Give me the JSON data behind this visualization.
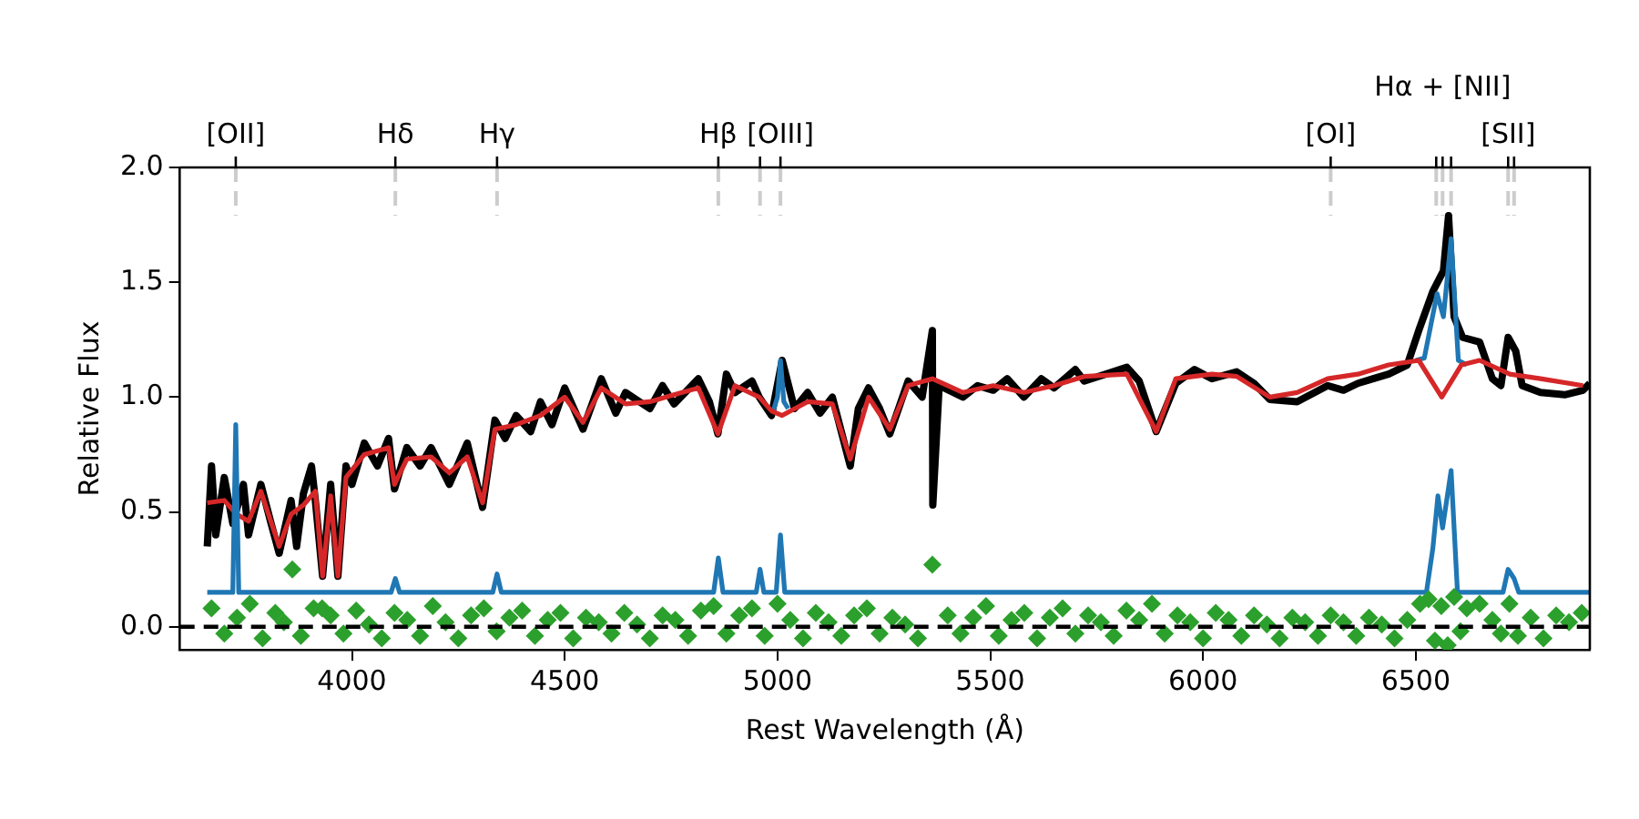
{
  "chart_data": {
    "type": "line",
    "xlabel": "Rest Wavelength (Å)",
    "ylabel": "Relative Flux",
    "xlim": [
      3596,
      6909
    ],
    "xticks": [
      4000,
      4500,
      5000,
      5500,
      6000,
      6500
    ],
    "ylim": [
      -0.1,
      2.0
    ],
    "yticks": [
      {
        "value": 0,
        "label": "0.0"
      },
      {
        "value": 0.5,
        "label": "0.5"
      },
      {
        "value": 1,
        "label": "1.0"
      },
      {
        "value": 1.5,
        "label": "1.5"
      },
      {
        "value": 2,
        "label": "2.0"
      }
    ],
    "grid": false,
    "legend": false,
    "ref_lines": [
      {
        "axis": "x",
        "value": 3727,
        "label": "[OII]",
        "color": "#cccccc",
        "line_style": "dashed"
      },
      {
        "axis": "x",
        "value": 4102,
        "label": "Hδ",
        "color": "#cccccc",
        "line_style": "dashed"
      },
      {
        "axis": "x",
        "value": 4341,
        "label": "Hγ",
        "color": "#cccccc",
        "line_style": "dashed"
      },
      {
        "axis": "x",
        "value": 4861,
        "label": "Hβ",
        "color": "#cccccc",
        "line_style": "dashed"
      },
      {
        "axis": "x",
        "value": 4959,
        "color": "#cccccc",
        "line_style": "dashed"
      },
      {
        "axis": "x",
        "value": 5007,
        "label": "[OIII]",
        "color": "#cccccc",
        "line_style": "dashed"
      },
      {
        "axis": "x",
        "value": 6300,
        "label": "[OI]",
        "color": "#cccccc",
        "line_style": "dashed"
      },
      {
        "axis": "x",
        "value": 6548,
        "color": "#cccccc",
        "line_style": "dashed"
      },
      {
        "axis": "x",
        "value": 6563,
        "label": "Hα + [NII]",
        "color": "#cccccc",
        "line_style": "dashed"
      },
      {
        "axis": "x",
        "value": 6583,
        "color": "#cccccc",
        "line_style": "dashed"
      },
      {
        "axis": "x",
        "value": 6717,
        "label": "[SII]",
        "color": "#cccccc",
        "line_style": "dashed"
      },
      {
        "axis": "x",
        "value": 6731,
        "color": "#cccccc",
        "line_style": "dashed"
      },
      {
        "axis": "y",
        "value": 0,
        "color": "#000000",
        "line_style": "dashed"
      }
    ],
    "series": [
      {
        "color": "#000000",
        "x": [
          3660,
          3670,
          3680,
          3700,
          3720,
          3745,
          3757,
          3786,
          3810,
          3829,
          3857,
          3870,
          3886,
          3905,
          3914,
          3931,
          3950,
          3967,
          3986,
          4000,
          4029,
          4060,
          4086,
          4100,
          4129,
          4160,
          4186,
          4229,
          4271,
          4307,
          4336,
          4360,
          4386,
          4420,
          4443,
          4470,
          4500,
          4543,
          4586,
          4620,
          4643,
          4700,
          4730,
          4757,
          4814,
          4840,
          4860,
          4880,
          4900,
          4940,
          4957,
          4986,
          5011,
          5040,
          5071,
          5100,
          5129,
          5171,
          5190,
          5214,
          5240,
          5264,
          5307,
          5340,
          5364,
          5365,
          5380,
          5436,
          5470,
          5507,
          5540,
          5579,
          5620,
          5650,
          5700,
          5721,
          5821,
          5850,
          5890,
          5936,
          5980,
          6021,
          6079,
          6120,
          6157,
          6221,
          6293,
          6330,
          6364,
          6400,
          6436,
          6480,
          6507,
          6540,
          6565,
          6577,
          6590,
          6610,
          6650,
          6680,
          6700,
          6717,
          6735,
          6750,
          6793,
          6850,
          6893,
          6909
        ],
        "values": [
          0.35,
          0.7,
          0.4,
          0.65,
          0.45,
          0.62,
          0.4,
          0.62,
          0.45,
          0.32,
          0.55,
          0.35,
          0.58,
          0.7,
          0.55,
          0.22,
          0.62,
          0.22,
          0.7,
          0.62,
          0.8,
          0.7,
          0.82,
          0.6,
          0.78,
          0.7,
          0.78,
          0.62,
          0.8,
          0.52,
          0.9,
          0.82,
          0.92,
          0.85,
          0.98,
          0.88,
          1.04,
          0.86,
          1.08,
          0.93,
          1.02,
          0.95,
          1.05,
          0.97,
          1.08,
          0.98,
          0.84,
          1.1,
          1.02,
          1.07,
          1.0,
          0.92,
          1.16,
          0.95,
          1.02,
          0.93,
          1.0,
          0.7,
          0.95,
          1.04,
          0.95,
          0.84,
          1.07,
          1.0,
          1.29,
          0.53,
          1.05,
          1.0,
          1.05,
          1.03,
          1.08,
          1.0,
          1.08,
          1.04,
          1.12,
          1.07,
          1.13,
          1.07,
          0.85,
          1.06,
          1.12,
          1.08,
          1.11,
          1.06,
          0.99,
          0.98,
          1.05,
          1.03,
          1.06,
          1.08,
          1.1,
          1.14,
          1.29,
          1.46,
          1.55,
          1.79,
          1.35,
          1.26,
          1.24,
          1.08,
          1.05,
          1.26,
          1.2,
          1.05,
          1.02,
          1.01,
          1.03,
          1.06
        ]
      },
      {
        "color": "#1f77b4",
        "x": [
          4990,
          5000,
          5007,
          5015,
          5025,
          5100,
          6500,
          6520,
          6550,
          6565,
          6583,
          6600,
          6620
        ],
        "values": [
          0.94,
          1.0,
          1.16,
          0.98,
          0.95,
          null,
          1.16,
          1.17,
          1.45,
          1.35,
          1.69,
          1.16,
          1.14
        ]
      },
      {
        "color": "#d62728",
        "x": [
          3660,
          3700,
          3729,
          3757,
          3786,
          3829,
          3857,
          3886,
          3914,
          3931,
          3950,
          3967,
          3986,
          4029,
          4086,
          4100,
          4129,
          4186,
          4229,
          4271,
          4307,
          4336,
          4386,
          4443,
          4500,
          4543,
          4586,
          4643,
          4700,
          4757,
          4814,
          4860,
          4900,
          4957,
          4986,
          5011,
          5071,
          5129,
          5171,
          5214,
          5264,
          5307,
          5364,
          5436,
          5507,
          5579,
          5650,
          5721,
          5821,
          5890,
          5936,
          6021,
          6079,
          6157,
          6221,
          6293,
          6364,
          6436,
          6507,
          6561,
          6607,
          6650,
          6721,
          6793,
          6893
        ],
        "values": [
          0.54,
          0.55,
          0.49,
          0.46,
          0.59,
          0.35,
          0.49,
          0.53,
          0.59,
          0.22,
          0.57,
          0.22,
          0.65,
          0.75,
          0.78,
          0.62,
          0.73,
          0.74,
          0.67,
          0.74,
          0.54,
          0.86,
          0.88,
          0.92,
          1.0,
          0.89,
          1.04,
          0.97,
          0.98,
          1.01,
          1.04,
          0.84,
          1.05,
          1.0,
          0.94,
          0.92,
          0.98,
          0.97,
          0.73,
          1.0,
          0.86,
          1.05,
          1.08,
          1.02,
          1.05,
          1.02,
          1.05,
          1.09,
          1.1,
          0.85,
          1.08,
          1.1,
          1.09,
          1.0,
          1.02,
          1.08,
          1.1,
          1.14,
          1.16,
          1.0,
          1.14,
          1.16,
          1.1,
          1.08,
          1.05
        ]
      },
      {
        "color": "#1f77b4",
        "x": [
          3660,
          3720,
          3727,
          3734,
          4092,
          4102,
          4112,
          4331,
          4341,
          4351,
          4850,
          4861,
          4872,
          4950,
          4959,
          4968,
          4997,
          5007,
          5017,
          6525,
          6540,
          6552,
          6563,
          6583,
          6598,
          6705,
          6717,
          6731,
          6742,
          6909
        ],
        "values": [
          0.15,
          0.15,
          0.88,
          0.15,
          0.15,
          0.21,
          0.15,
          0.15,
          0.23,
          0.15,
          0.15,
          0.3,
          0.15,
          0.15,
          0.25,
          0.15,
          0.15,
          0.4,
          0.15,
          0.15,
          0.34,
          0.57,
          0.43,
          0.68,
          0.15,
          0.15,
          0.25,
          0.21,
          0.15,
          0.15
        ]
      },
      {
        "type": "scatter",
        "marker": "diamond",
        "color": "#2ca02c",
        "x": [
          3670,
          3700,
          3730,
          3760,
          3790,
          3820,
          3840,
          3860,
          3880,
          3910,
          3930,
          3950,
          3980,
          4010,
          4040,
          4070,
          4100,
          4130,
          4160,
          4190,
          4220,
          4250,
          4280,
          4310,
          4340,
          4370,
          4400,
          4430,
          4460,
          4490,
          4520,
          4550,
          4580,
          4610,
          4640,
          4670,
          4700,
          4730,
          4760,
          4790,
          4820,
          4850,
          4880,
          4910,
          4940,
          4970,
          5000,
          5030,
          5060,
          5090,
          5120,
          5150,
          5180,
          5210,
          5240,
          5270,
          5300,
          5330,
          5364,
          5400,
          5430,
          5460,
          5490,
          5520,
          5550,
          5580,
          5610,
          5640,
          5670,
          5700,
          5730,
          5760,
          5790,
          5820,
          5850,
          5880,
          5910,
          5940,
          5970,
          6000,
          6030,
          6060,
          6090,
          6120,
          6150,
          6180,
          6210,
          6240,
          6270,
          6300,
          6330,
          6360,
          6390,
          6420,
          6450,
          6480,
          6510,
          6530,
          6545,
          6560,
          6575,
          6590,
          6605,
          6620,
          6650,
          6680,
          6700,
          6720,
          6740,
          6770,
          6800,
          6830,
          6860,
          6890
        ],
        "values": [
          0.08,
          -0.03,
          0.04,
          0.1,
          -0.05,
          0.06,
          0.02,
          0.25,
          -0.04,
          0.08,
          0.08,
          0.05,
          -0.03,
          0.07,
          0.01,
          -0.05,
          0.06,
          0.03,
          -0.04,
          0.09,
          0.02,
          -0.05,
          0.05,
          0.08,
          -0.02,
          0.04,
          0.07,
          -0.04,
          0.03,
          0.06,
          -0.05,
          0.04,
          0.02,
          -0.03,
          0.06,
          0.01,
          -0.05,
          0.05,
          0.03,
          -0.04,
          0.07,
          0.09,
          -0.03,
          0.05,
          0.08,
          -0.04,
          0.1,
          0.03,
          -0.05,
          0.06,
          0.02,
          -0.04,
          0.05,
          0.08,
          -0.03,
          0.04,
          0.01,
          -0.05,
          0.27,
          0.05,
          -0.03,
          0.04,
          0.09,
          -0.04,
          0.03,
          0.06,
          -0.05,
          0.04,
          0.08,
          -0.03,
          0.05,
          0.02,
          -0.04,
          0.07,
          0.03,
          0.1,
          -0.03,
          0.05,
          0.02,
          -0.05,
          0.06,
          0.03,
          -0.04,
          0.05,
          0.01,
          -0.05,
          0.04,
          0.02,
          -0.04,
          0.05,
          0.02,
          -0.04,
          0.04,
          0.01,
          -0.05,
          0.03,
          0.1,
          0.12,
          -0.06,
          0.09,
          -0.08,
          0.13,
          -0.02,
          0.08,
          0.1,
          0.03,
          -0.03,
          0.1,
          -0.04,
          0.04,
          -0.05,
          0.05,
          0.02,
          0.06
        ]
      }
    ]
  }
}
